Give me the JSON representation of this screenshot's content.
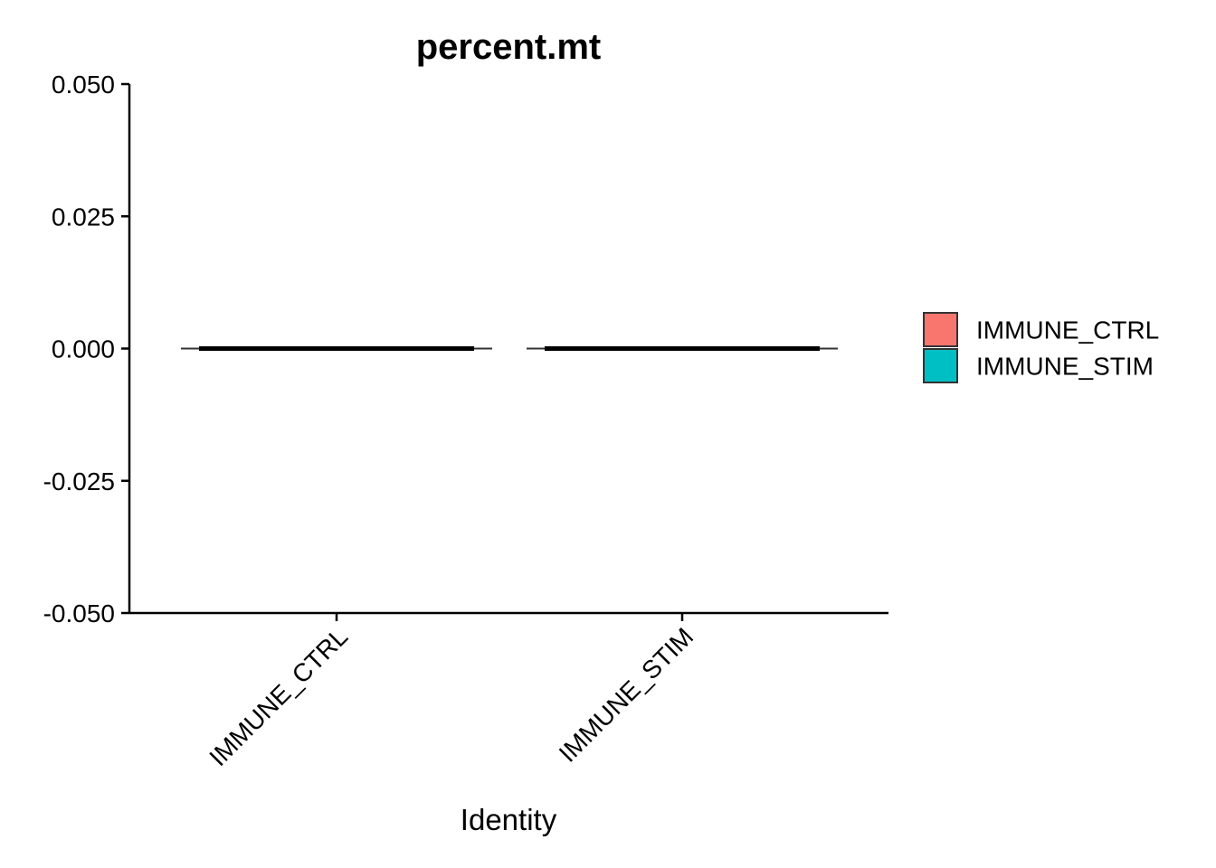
{
  "chart_data": {
    "type": "violin",
    "title": "percent.mt",
    "xlabel": "Identity",
    "ylabel": "",
    "ylim": [
      -0.05,
      0.05
    ],
    "yticks": [
      0.05,
      0.025,
      0,
      -0.025,
      -0.05
    ],
    "ytick_labels": [
      "0.050",
      "0.025",
      "0.000",
      "-0.025",
      "-0.050"
    ],
    "categories": [
      "IMMUNE_CTRL",
      "IMMUNE_STIM"
    ],
    "series": [
      {
        "name": "IMMUNE_CTRL",
        "color": "#F8766D",
        "values": [
          0
        ],
        "min": 0,
        "max": 0
      },
      {
        "name": "IMMUNE_STIM",
        "color": "#00BFC4",
        "values": [
          0
        ],
        "min": 0,
        "max": 0
      }
    ],
    "legend": {
      "position": "right",
      "entries": [
        "IMMUNE_CTRL",
        "IMMUNE_STIM"
      ]
    },
    "grid": false
  }
}
